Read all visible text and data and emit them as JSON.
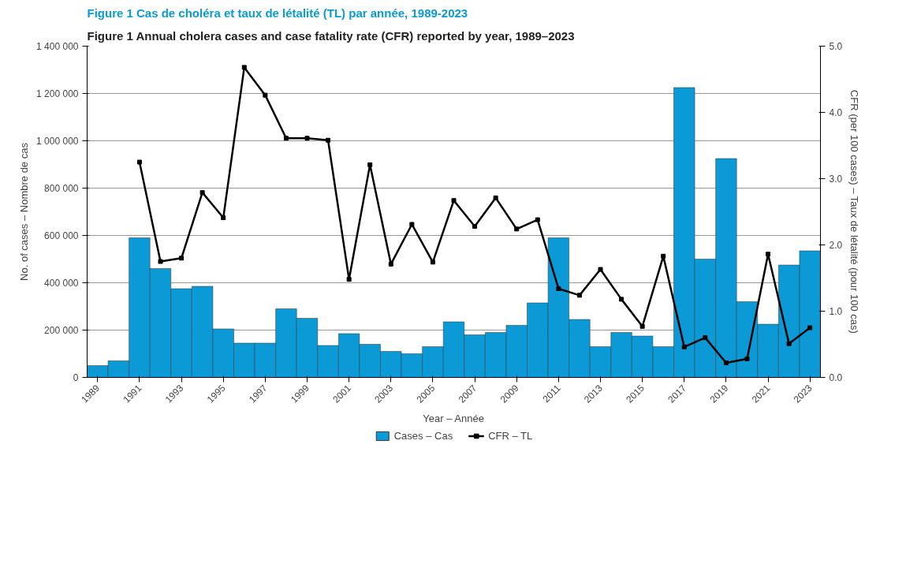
{
  "chart_data": {
    "type": "bar",
    "title": "Figure 1 Annual cholera cases and case fatality rate (CFR) reported by year, 1989–2023",
    "subtitle": "Figure 1 Cas de choléra et taux de létalité (TL) par année, 1989-2023",
    "xlabel": "Year – Année",
    "ylabel": "No. of cases – Nombre de cas",
    "y2label": "CFR (per 100 cases) – Taux de létalité (pour 100 cas)",
    "categories": [
      "1989",
      null,
      "1991",
      null,
      "1993",
      null,
      "1995",
      null,
      "1997",
      null,
      "1999",
      null,
      "2001",
      null,
      "2003",
      null,
      "2005",
      null,
      "2007",
      null,
      "2009",
      null,
      "2011",
      null,
      "2013",
      null,
      "2015",
      null,
      "2017",
      null,
      "2019",
      null,
      "2021",
      null,
      "2023"
    ],
    "series": [
      {
        "name": "Cases – Cas",
        "color": "#0b9ad6",
        "values": [
          50000,
          70000,
          590000,
          460000,
          375000,
          385000,
          205000,
          145000,
          145000,
          290000,
          250000,
          135000,
          185000,
          140000,
          110000,
          100000,
          130000,
          235000,
          180000,
          190000,
          220000,
          315000,
          590000,
          245000,
          130000,
          190000,
          175000,
          130000,
          1225000,
          500000,
          925000,
          320000,
          225000,
          475000,
          535000
        ]
      },
      {
        "name": "CFR – TL",
        "type": "line",
        "axis": "y2",
        "color": "#000000",
        "marker": "square",
        "line_style": "solid",
        "values": [
          null,
          null,
          3.25,
          1.75,
          1.8,
          2.79,
          2.41,
          4.68,
          4.26,
          3.61,
          3.61,
          3.58,
          1.48,
          3.21,
          1.71,
          2.31,
          1.74,
          2.67,
          2.28,
          2.71,
          2.24,
          2.38,
          1.34,
          1.24,
          1.63,
          1.18,
          0.77,
          1.83,
          0.46,
          0.6,
          0.22,
          0.28,
          1.86,
          0.51,
          0.75
        ]
      }
    ],
    "ylim": [
      0,
      1400000
    ],
    "yticks": [
      {
        "value": 0,
        "label": "0"
      },
      {
        "value": 200000,
        "label": "200 000"
      },
      {
        "value": 400000,
        "label": "400 000"
      },
      {
        "value": 600000,
        "label": "600 000"
      },
      {
        "value": 800000,
        "label": "800 000"
      },
      {
        "value": 1000000,
        "label": "1 000 000"
      },
      {
        "value": 1200000,
        "label": "1 200 000"
      },
      {
        "value": 1400000,
        "label": "1 400 000"
      }
    ],
    "y2lim": [
      0,
      5
    ],
    "y2ticks": [
      {
        "value": 0,
        "label": "0.0"
      },
      {
        "value": 1,
        "label": "1.0"
      },
      {
        "value": 2,
        "label": "2.0"
      },
      {
        "value": 3,
        "label": "3.0"
      },
      {
        "value": 4,
        "label": "4.0"
      },
      {
        "value": 5,
        "label": "5.0"
      }
    ],
    "grid": "y",
    "legend": "bottom"
  }
}
